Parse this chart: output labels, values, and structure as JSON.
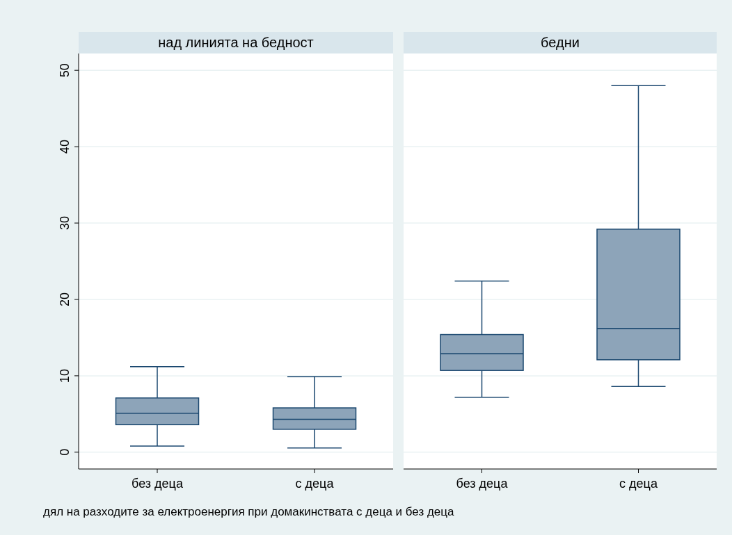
{
  "chart_data": [
    {
      "type": "box",
      "title": "над линията на бедност",
      "categories": [
        "без деца",
        "с деца"
      ],
      "color": "#8da4b9",
      "ylim": [
        -2.2,
        52.2
      ],
      "yticks": [
        0,
        10,
        20,
        30,
        40,
        50
      ],
      "grid": "y",
      "annotations": [
        "дял на разходите за електроенергия при домакинствата с деца и без деца"
      ],
      "boxes": [
        {
          "low": 0.8,
          "q1": 3.6,
          "median": 5.1,
          "q3": 7.1,
          "high": 11.2
        },
        {
          "low": 0.55,
          "q1": 3.0,
          "median": 4.3,
          "q3": 5.8,
          "high": 9.9
        }
      ]
    },
    {
      "type": "box",
      "title": "бедни",
      "categories": [
        "без деца",
        "с деца"
      ],
      "color": "#8da4b9",
      "ylim": [
        -2.2,
        52.2
      ],
      "yticks": [
        0,
        10,
        20,
        30,
        40,
        50
      ],
      "grid": "y",
      "tick_labels": "x",
      "boxes": [
        {
          "low": 7.2,
          "q1": 10.7,
          "median": 12.9,
          "q3": 15.4,
          "high": 22.4
        },
        {
          "low": 8.6,
          "q1": 12.1,
          "median": 16.2,
          "q3": 29.2,
          "high": 48.0
        }
      ]
    }
  ]
}
